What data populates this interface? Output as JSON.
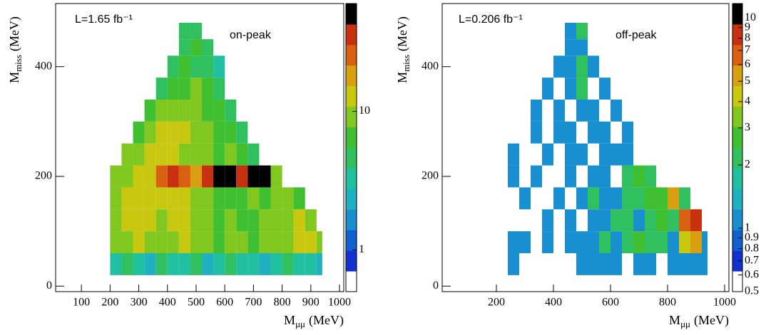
{
  "chart_data": [
    {
      "type": "heatmap",
      "luminosity": "L=1.65 fb⁻¹",
      "label": "on-peak",
      "xlabel": "M",
      "xlabel_sub": "μμ",
      "xlabel_unit": "(MeV)",
      "ylabel": "M",
      "ylabel_sub": "miss",
      "ylabel_unit": "(MeV)",
      "xlim": [
        10,
        1015
      ],
      "ylim": [
        -10,
        515
      ],
      "xticks": [
        100,
        200,
        300,
        400,
        500,
        600,
        700,
        800,
        900,
        1000
      ],
      "yticks": [
        0,
        200,
        400
      ],
      "x_edges": [
        200,
        240,
        280,
        320,
        360,
        400,
        440,
        480,
        520,
        560,
        600,
        640,
        680,
        720,
        760,
        800,
        840,
        880,
        920,
        940
      ],
      "y_edges": [
        20,
        60,
        100,
        140,
        180,
        220,
        260,
        300,
        340,
        380,
        420,
        450,
        480
      ],
      "z": [
        [
          3,
          4,
          3,
          2,
          4,
          3,
          3,
          4,
          2,
          3,
          4,
          3,
          3,
          2,
          3,
          4,
          3,
          3,
          2
        ],
        [
          8,
          10,
          12,
          10,
          8,
          9,
          11,
          10,
          8,
          7,
          9,
          8,
          7,
          8,
          9,
          10,
          12,
          14,
          8
        ],
        [
          9,
          12,
          14,
          11,
          10,
          12,
          13,
          9,
          8,
          7,
          8,
          7,
          6,
          8,
          9,
          10,
          12,
          10,
          null
        ],
        [
          10,
          13,
          15,
          12,
          14,
          13,
          12,
          10,
          8,
          7,
          6,
          7,
          8,
          7,
          8,
          9,
          6,
          null,
          null
        ],
        [
          9,
          10,
          12,
          14,
          30,
          35,
          25,
          20,
          40,
          60,
          45,
          40,
          55,
          50,
          8,
          null,
          null,
          null,
          null
        ],
        [
          null,
          8,
          10,
          12,
          14,
          12,
          10,
          9,
          8,
          7,
          8,
          6,
          5,
          null,
          null,
          null,
          null,
          null,
          null
        ],
        [
          null,
          null,
          7,
          9,
          13,
          14,
          12,
          10,
          8,
          7,
          6,
          5,
          null,
          null,
          null,
          null,
          null,
          null,
          null
        ],
        [
          null,
          null,
          null,
          6,
          8,
          10,
          9,
          8,
          7,
          6,
          5,
          null,
          null,
          null,
          null,
          null,
          null,
          null,
          null
        ],
        [
          null,
          null,
          null,
          null,
          5,
          7,
          6,
          8,
          6,
          5,
          null,
          null,
          null,
          null,
          null,
          null,
          null,
          null,
          null
        ],
        [
          null,
          null,
          null,
          null,
          null,
          4,
          6,
          5,
          4,
          3,
          null,
          null,
          null,
          null,
          null,
          null,
          null,
          null,
          null
        ],
        [
          null,
          null,
          null,
          null,
          null,
          null,
          5,
          6,
          4,
          null,
          null,
          null,
          null,
          null,
          null,
          null,
          null,
          null,
          null
        ],
        [
          null,
          null,
          null,
          null,
          null,
          null,
          4,
          5,
          null,
          null,
          null,
          null,
          null,
          null,
          null,
          null,
          null,
          null,
          null
        ]
      ],
      "zlim": [
        0.5,
        60
      ],
      "zscale": "log",
      "zticks": [
        1,
        10
      ],
      "palette": [
        "#ffffff",
        "#1030d0",
        "#1060d0",
        "#1890d0",
        "#20b0c0",
        "#20c0a0",
        "#30c060",
        "#40c030",
        "#80c820",
        "#c8c810",
        "#d8a010",
        "#d86010",
        "#c83010",
        "#000000"
      ]
    },
    {
      "type": "heatmap",
      "luminosity": "L=0.206 fb⁻¹",
      "label": "off-peak",
      "xlabel": "M",
      "xlabel_sub": "μμ",
      "xlabel_unit": "(MeV)",
      "ylabel": "M",
      "ylabel_sub": "miss",
      "ylabel_unit": "(MeV)",
      "xlim": [
        10,
        1015
      ],
      "ylim": [
        -10,
        515
      ],
      "xticks": [
        200,
        400,
        600,
        800,
        1000
      ],
      "yticks": [
        0,
        200,
        400
      ],
      "x_edges": [
        200,
        240,
        280,
        320,
        360,
        400,
        440,
        480,
        520,
        560,
        600,
        640,
        680,
        720,
        760,
        800,
        840,
        880,
        920,
        940
      ],
      "y_edges": [
        20,
        60,
        100,
        140,
        180,
        220,
        260,
        300,
        340,
        380,
        420,
        450,
        480
      ],
      "z": [
        [
          null,
          1,
          null,
          null,
          null,
          null,
          null,
          1,
          1,
          1,
          1,
          null,
          1,
          1,
          null,
          1,
          1,
          1,
          1
        ],
        [
          null,
          1,
          1,
          null,
          1,
          null,
          1,
          1,
          1,
          2,
          1,
          2,
          3,
          2,
          2,
          1,
          4,
          5,
          1
        ],
        [
          null,
          null,
          null,
          null,
          1,
          null,
          1,
          null,
          1,
          1,
          2,
          2,
          1,
          2,
          3,
          2,
          6,
          8,
          null
        ],
        [
          null,
          null,
          1,
          null,
          null,
          1,
          null,
          1,
          2,
          1,
          1,
          2,
          2,
          3,
          3,
          5,
          2,
          null,
          null
        ],
        [
          null,
          1,
          null,
          1,
          null,
          null,
          1,
          null,
          1,
          1,
          null,
          2,
          3,
          2,
          null,
          null,
          null,
          null,
          null
        ],
        [
          null,
          1,
          null,
          null,
          1,
          null,
          1,
          1,
          null,
          1,
          1,
          1,
          null,
          null,
          null,
          null,
          null,
          null,
          null
        ],
        [
          null,
          null,
          null,
          1,
          null,
          1,
          1,
          null,
          1,
          1,
          null,
          1,
          null,
          null,
          null,
          null,
          null,
          null,
          null
        ],
        [
          null,
          null,
          null,
          1,
          null,
          1,
          null,
          1,
          1,
          null,
          1,
          null,
          null,
          null,
          null,
          null,
          null,
          null,
          null
        ],
        [
          null,
          null,
          null,
          null,
          1,
          null,
          1,
          2,
          null,
          1,
          null,
          null,
          null,
          null,
          null,
          null,
          null,
          null,
          null
        ],
        [
          null,
          null,
          null,
          null,
          null,
          1,
          1,
          2,
          1,
          null,
          null,
          null,
          null,
          null,
          null,
          null,
          null,
          null,
          null
        ],
        [
          null,
          null,
          null,
          null,
          null,
          null,
          1,
          1,
          null,
          null,
          null,
          null,
          null,
          null,
          null,
          null,
          null,
          null,
          null
        ],
        [
          null,
          null,
          null,
          null,
          null,
          null,
          1,
          2,
          null,
          null,
          null,
          null,
          null,
          null,
          null,
          null,
          null,
          null,
          null
        ]
      ],
      "zlim": [
        0.5,
        11.7
      ],
      "zscale": "log",
      "zticks": [
        0.5,
        0.6,
        0.7,
        0.8,
        0.9,
        1,
        2,
        3,
        4,
        5,
        6,
        7,
        8,
        9,
        10
      ],
      "palette": [
        "#ffffff",
        "#1030d0",
        "#1060d0",
        "#1890d0",
        "#20b0c0",
        "#20c0a0",
        "#30c060",
        "#40c030",
        "#80c820",
        "#c8c810",
        "#d8a010",
        "#d86010",
        "#c83010",
        "#000000"
      ]
    }
  ]
}
